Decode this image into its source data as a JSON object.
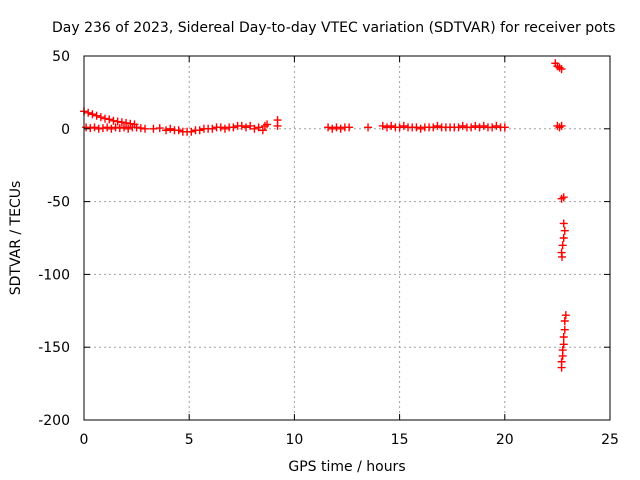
{
  "chart_data": {
    "type": "scatter",
    "title": "Day 236 of 2023, Sidereal Day-to-day VTEC variation (SDTVAR) for receiver pots",
    "xlabel": "GPS time / hours",
    "ylabel": "SDTVAR / TECUs",
    "xlim": [
      0,
      25
    ],
    "ylim": [
      -200,
      50
    ],
    "xticks": [
      0,
      5,
      10,
      15,
      20,
      25
    ],
    "yticks": [
      -200,
      -150,
      -100,
      -50,
      0,
      50
    ],
    "grid": true,
    "marker": "+",
    "color": "#ff0000",
    "series": [
      {
        "name": "SDTVAR",
        "points": [
          [
            0.0,
            12
          ],
          [
            0.2,
            11
          ],
          [
            0.4,
            10
          ],
          [
            0.6,
            9
          ],
          [
            0.8,
            8
          ],
          [
            1.0,
            7
          ],
          [
            1.2,
            6.5
          ],
          [
            1.4,
            5.5
          ],
          [
            1.6,
            5
          ],
          [
            1.8,
            4.5
          ],
          [
            2.0,
            4
          ],
          [
            2.2,
            3.5
          ],
          [
            2.4,
            3
          ],
          [
            0.1,
            1
          ],
          [
            0.3,
            0.5
          ],
          [
            0.5,
            1
          ],
          [
            0.7,
            0
          ],
          [
            0.9,
            0.5
          ],
          [
            1.1,
            1
          ],
          [
            1.3,
            0
          ],
          [
            1.5,
            1
          ],
          [
            1.7,
            0.5
          ],
          [
            1.9,
            1
          ],
          [
            2.1,
            0
          ],
          [
            2.3,
            1
          ],
          [
            2.5,
            1
          ],
          [
            2.7,
            0.5
          ],
          [
            2.9,
            0
          ],
          [
            3.3,
            0
          ],
          [
            3.6,
            0.5
          ],
          [
            3.9,
            -1
          ],
          [
            4.1,
            0
          ],
          [
            4.3,
            -1
          ],
          [
            4.5,
            -1
          ],
          [
            4.7,
            -2
          ],
          [
            4.9,
            -2
          ],
          [
            5.1,
            -2
          ],
          [
            5.3,
            -1
          ],
          [
            5.5,
            -1
          ],
          [
            5.7,
            0
          ],
          [
            5.9,
            0
          ],
          [
            6.1,
            0
          ],
          [
            6.3,
            1
          ],
          [
            6.5,
            1
          ],
          [
            6.7,
            0
          ],
          [
            6.9,
            1
          ],
          [
            7.1,
            1
          ],
          [
            7.3,
            2
          ],
          [
            7.5,
            2
          ],
          [
            7.7,
            1
          ],
          [
            7.9,
            2
          ],
          [
            8.1,
            0
          ],
          [
            8.3,
            1
          ],
          [
            8.5,
            -1
          ],
          [
            8.6,
            2
          ],
          [
            8.7,
            3
          ],
          [
            9.2,
            6
          ],
          [
            9.2,
            2
          ],
          [
            11.6,
            1
          ],
          [
            11.8,
            0
          ],
          [
            12.0,
            1
          ],
          [
            12.2,
            0
          ],
          [
            12.4,
            1
          ],
          [
            12.6,
            1
          ],
          [
            13.5,
            1
          ],
          [
            14.2,
            2
          ],
          [
            14.4,
            1
          ],
          [
            14.6,
            2
          ],
          [
            14.8,
            1
          ],
          [
            15.0,
            1
          ],
          [
            15.2,
            2
          ],
          [
            15.4,
            1
          ],
          [
            15.6,
            1
          ],
          [
            15.8,
            1
          ],
          [
            16.0,
            0
          ],
          [
            16.2,
            1
          ],
          [
            16.4,
            1
          ],
          [
            16.6,
            1
          ],
          [
            16.8,
            2
          ],
          [
            17.0,
            1
          ],
          [
            17.2,
            1
          ],
          [
            17.4,
            1
          ],
          [
            17.6,
            1
          ],
          [
            17.8,
            1
          ],
          [
            18.0,
            2
          ],
          [
            18.2,
            1
          ],
          [
            18.4,
            1
          ],
          [
            18.6,
            2
          ],
          [
            18.8,
            1
          ],
          [
            19.0,
            2
          ],
          [
            19.2,
            1
          ],
          [
            19.4,
            1
          ],
          [
            19.6,
            2
          ],
          [
            19.8,
            1
          ],
          [
            20.0,
            1
          ],
          [
            22.4,
            45
          ],
          [
            22.5,
            43
          ],
          [
            22.6,
            42
          ],
          [
            22.7,
            41
          ],
          [
            22.5,
            2
          ],
          [
            22.6,
            1
          ],
          [
            22.7,
            2
          ],
          [
            22.7,
            -48
          ],
          [
            22.8,
            -47
          ],
          [
            22.8,
            -65
          ],
          [
            22.85,
            -70
          ],
          [
            22.8,
            -75
          ],
          [
            22.75,
            -80
          ],
          [
            22.7,
            -85
          ],
          [
            22.72,
            -88
          ],
          [
            22.9,
            -128
          ],
          [
            22.85,
            -132
          ],
          [
            22.85,
            -138
          ],
          [
            22.8,
            -143
          ],
          [
            22.8,
            -148
          ],
          [
            22.75,
            -152
          ],
          [
            22.75,
            -156
          ],
          [
            22.7,
            -160
          ],
          [
            22.7,
            -164
          ]
        ]
      }
    ]
  }
}
